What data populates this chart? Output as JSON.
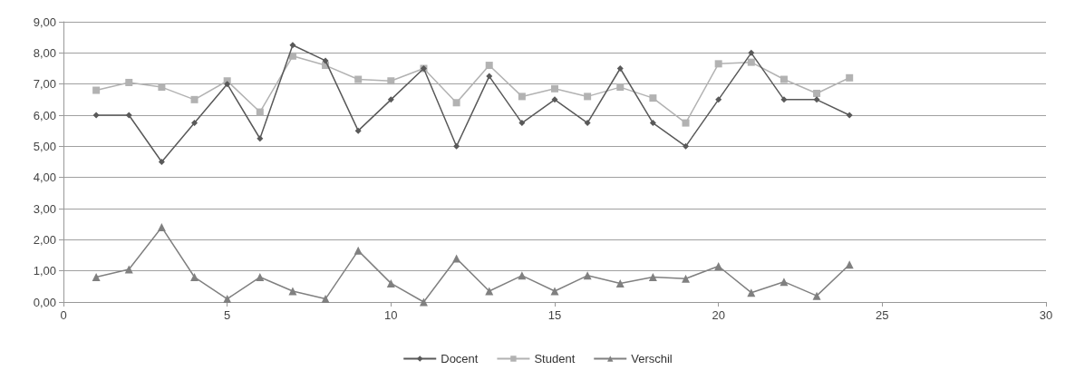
{
  "chart_data": {
    "type": "line",
    "x": [
      1,
      2,
      3,
      4,
      5,
      6,
      7,
      8,
      9,
      10,
      11,
      12,
      13,
      14,
      15,
      16,
      17,
      18,
      19,
      20,
      21,
      22,
      23,
      24
    ],
    "series": [
      {
        "name": "Docent",
        "color": "#595959",
        "marker": "diamond",
        "values": [
          6,
          6,
          4.5,
          5.75,
          7,
          5.25,
          8.25,
          7.75,
          5.5,
          6.5,
          7.5,
          5,
          7.25,
          5.75,
          6.5,
          5.75,
          7.5,
          5.75,
          5,
          6.5,
          8,
          6.5,
          6.5,
          6
        ]
      },
      {
        "name": "Student",
        "color": "#b2b2b2",
        "marker": "square",
        "values": [
          6.8,
          7.05,
          6.9,
          6.5,
          7.1,
          6.1,
          7.9,
          7.6,
          7.15,
          7.1,
          7.5,
          6.4,
          7.6,
          6.6,
          6.85,
          6.6,
          6.9,
          6.55,
          5.75,
          7.65,
          7.7,
          7.15,
          6.7,
          7.2
        ]
      },
      {
        "name": "Verschil",
        "color": "#808080",
        "marker": "triangle",
        "values": [
          0.8,
          1.05,
          2.4,
          0.8,
          0.1,
          0.8,
          0.35,
          0.1,
          1.65,
          0.6,
          0.0,
          1.4,
          0.35,
          0.85,
          0.35,
          0.85,
          0.6,
          0.8,
          0.75,
          1.15,
          0.3,
          0.65,
          0.2,
          1.2
        ]
      }
    ],
    "xlim": [
      0,
      30
    ],
    "xticks": [
      0,
      5,
      10,
      15,
      20,
      25,
      30
    ],
    "ylim": [
      0,
      9
    ],
    "yticks": [
      {
        "value": 0,
        "label": "0,00"
      },
      {
        "value": 1,
        "label": "1,00"
      },
      {
        "value": 2,
        "label": "2,00"
      },
      {
        "value": 3,
        "label": "3,00"
      },
      {
        "value": 4,
        "label": "4,00"
      },
      {
        "value": 5,
        "label": "5,00"
      },
      {
        "value": 6,
        "label": "6,00"
      },
      {
        "value": 7,
        "label": "7,00"
      },
      {
        "value": 8,
        "label": "8,00"
      },
      {
        "value": 9,
        "label": "9,00"
      }
    ],
    "grid": "y",
    "legend": "bottom"
  }
}
